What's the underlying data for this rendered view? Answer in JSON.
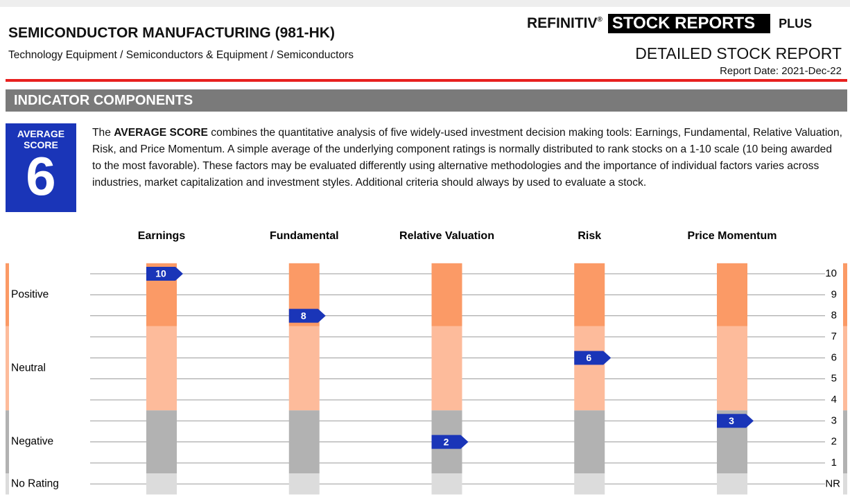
{
  "header": {
    "title": "SEMICONDUCTOR MANUFACTURING (981-HK)",
    "subtitle": "Technology Equipment / Semiconductors & Equipment / Semiconductors",
    "brand": "REFINITIV",
    "brand_mark": "®",
    "product": "STOCK REPORTS",
    "product_tier": "PLUS",
    "report_type": "DETAILED STOCK REPORT",
    "report_date": "Report Date: 2021-Dec-22"
  },
  "section": {
    "title": "INDICATOR COMPONENTS"
  },
  "average_score": {
    "label": "AVERAGE SCORE",
    "value": 6
  },
  "description": {
    "before": "The ",
    "bold": "AVERAGE SCORE",
    "after": " combines the quantitative analysis of five widely-used investment decision making tools: Earnings, Fundamental, Relative Valuation, Risk, and Price Momentum. A simple average of the underlying component ratings is normally distributed to rank stocks on a 1-10 scale (10 being awarded to the most favorable). These factors may be evaluated differently using alternative methodologies and the importance of individual factors varies across industries, market capitalization and investment styles. Additional criteria should always by used to evaluate a stock."
  },
  "components": [
    {
      "name": "Earnings",
      "score": 10
    },
    {
      "name": "Fundamental",
      "score": 8
    },
    {
      "name": "Relative Valuation",
      "score": 2
    },
    {
      "name": "Risk",
      "score": 6
    },
    {
      "name": "Price Momentum",
      "score": 3
    }
  ],
  "scale": {
    "ticks": [
      10,
      9,
      8,
      7,
      6,
      5,
      4,
      3,
      2,
      1
    ],
    "no_rating_label": "NR",
    "zones": [
      "Positive",
      "Neutral",
      "Negative",
      "No Rating"
    ]
  }
}
